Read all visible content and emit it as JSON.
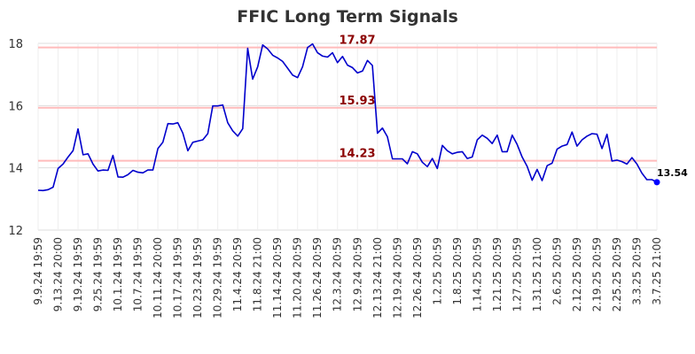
{
  "chart_data": {
    "type": "line",
    "title": "FFIC Long Term Signals",
    "xlabel": "",
    "ylabel": "",
    "ylim": [
      12,
      18
    ],
    "yticks": [
      "12",
      "14",
      "16",
      "18"
    ],
    "grid": true,
    "x_ticks": [
      "9.9.24 19:59",
      "9.13.24 20:00",
      "9.19.24 19:59",
      "9.25.24 19:59",
      "10.1.24 19:59",
      "10.7.24 19:59",
      "10.11.24 20:00",
      "10.17.24 19:59",
      "10.23.24 19:59",
      "10.29.24 19:59",
      "11.4.24 20:59",
      "11.8.24 21:00",
      "11.14.24 20:59",
      "11.20.24 20:59",
      "11.26.24 20:59",
      "12.3.24 20:59",
      "12.9.24 20:59",
      "12.13.24 21:00",
      "12.19.24 20:59",
      "12.26.24 20:59",
      "1.2.25 20:59",
      "1.8.25 20:59",
      "1.14.25 20:59",
      "1.21.25 20:59",
      "1.27.25 20:59",
      "1.31.25 21:00",
      "2.6.25 20:59",
      "2.12.25 20:59",
      "2.19.25 20:59",
      "2.25.25 20:59",
      "3.3.25 20:59",
      "3.7.25 21:00"
    ],
    "series": [
      {
        "color": "#0000cc",
        "values": [
          13.28,
          13.27,
          13.3,
          13.38,
          13.98,
          14.12,
          14.35,
          14.55,
          15.25,
          14.42,
          14.45,
          14.12,
          13.9,
          13.93,
          13.92,
          14.4,
          13.71,
          13.7,
          13.78,
          13.92,
          13.86,
          13.84,
          13.93,
          13.93,
          14.62,
          14.82,
          15.42,
          15.41,
          15.45,
          15.12,
          14.55,
          14.82,
          14.86,
          14.9,
          15.1,
          15.99,
          15.99,
          16.02,
          15.45,
          15.19,
          15.02,
          15.26,
          17.84,
          16.85,
          17.25,
          17.95,
          17.82,
          17.62,
          17.53,
          17.42,
          17.2,
          16.98,
          16.9,
          17.25,
          17.87,
          17.98,
          17.7,
          17.59,
          17.56,
          17.7,
          17.38,
          17.58,
          17.3,
          17.22,
          17.05,
          17.11,
          17.45,
          17.29,
          15.11,
          15.28,
          15.0,
          14.29,
          14.29,
          14.29,
          14.13,
          14.52,
          14.45,
          14.18,
          14.04,
          14.3,
          13.98,
          14.72,
          14.55,
          14.45,
          14.5,
          14.52,
          14.3,
          14.35,
          14.9,
          15.05,
          14.95,
          14.78,
          15.05,
          14.52,
          14.52,
          15.05,
          14.75,
          14.35,
          14.05,
          13.6,
          13.95,
          13.59,
          14.07,
          14.15,
          14.6,
          14.7,
          14.75,
          15.15,
          14.7,
          14.9,
          15.02,
          15.1,
          15.08,
          14.62,
          15.08,
          14.22,
          14.25,
          14.2,
          14.12,
          14.33,
          14.12,
          13.83,
          13.62,
          13.62,
          13.54
        ]
      }
    ],
    "reference_lines": [
      {
        "value": 17.87,
        "label": "17.87",
        "color": "#ffbbbb",
        "label_color": "#8b0000"
      },
      {
        "value": 15.93,
        "label": "15.93",
        "color": "#ffbbbb",
        "label_color": "#8b0000"
      },
      {
        "value": 14.23,
        "label": "14.23",
        "color": "#ffbbbb",
        "label_color": "#8b0000"
      }
    ],
    "last_point": {
      "value": 13.54,
      "label": "13.54",
      "color": "#0000ff"
    }
  }
}
